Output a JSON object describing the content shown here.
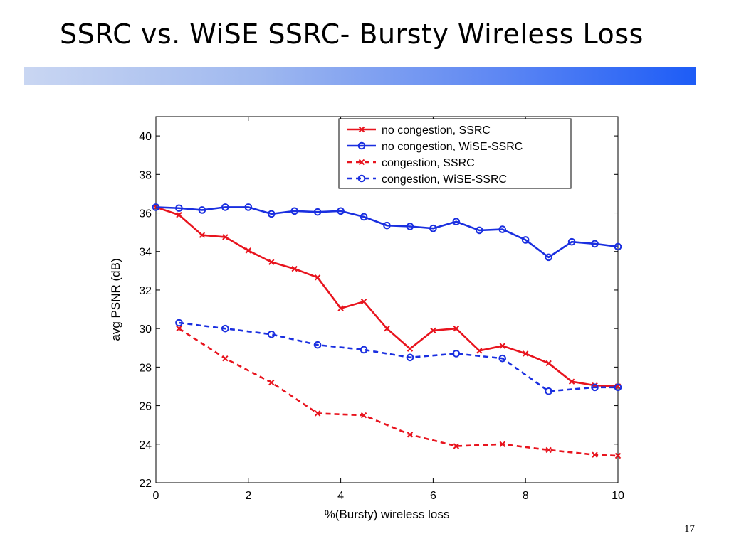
{
  "slide": {
    "title": "SSRC vs. WiSE SSRC- Bursty Wireless Loss",
    "page_number": "17",
    "accent_color": "#1d5cf6"
  },
  "chart_data": {
    "type": "line",
    "title": "",
    "xlabel": "%(Bursty) wireless loss",
    "ylabel": "avg PSNR (dB)",
    "xlim": [
      0,
      10
    ],
    "ylim": [
      22,
      41
    ],
    "xticks": [
      0,
      2,
      4,
      6,
      8,
      10
    ],
    "yticks": [
      22,
      24,
      26,
      28,
      30,
      32,
      34,
      36,
      38,
      40
    ],
    "grid": false,
    "legend_position": "top-right",
    "series": [
      {
        "name": "no congestion, SSRC",
        "color": "#e8141e",
        "line_style": "solid",
        "marker": "x",
        "x": [
          0,
          0.5,
          1,
          1.5,
          2,
          2.5,
          3,
          3.5,
          4,
          4.5,
          5,
          5.5,
          6,
          6.5,
          7,
          7.5,
          8,
          8.5,
          9,
          9.5,
          10
        ],
        "y": [
          36.3,
          35.9,
          34.85,
          34.75,
          34.05,
          33.45,
          33.1,
          32.65,
          31.05,
          31.4,
          30.0,
          28.95,
          29.9,
          30.0,
          28.85,
          29.1,
          28.7,
          28.2,
          27.25,
          27.05,
          27.0
        ]
      },
      {
        "name": "no congestion, WiSE-SSRC",
        "color": "#1a2fe0",
        "line_style": "solid",
        "marker": "o",
        "x": [
          0,
          0.5,
          1,
          1.5,
          2,
          2.5,
          3,
          3.5,
          4,
          4.5,
          5,
          5.5,
          6,
          6.5,
          7,
          7.5,
          8,
          8.5,
          9,
          9.5,
          10
        ],
        "y": [
          36.3,
          36.25,
          36.15,
          36.3,
          36.3,
          35.95,
          36.1,
          36.05,
          36.1,
          35.8,
          35.35,
          35.3,
          35.2,
          35.55,
          35.1,
          35.15,
          34.6,
          33.7,
          34.5,
          34.4,
          34.25
        ]
      },
      {
        "name": "congestion, SSRC",
        "color": "#e8141e",
        "line_style": "dashed",
        "marker": "x",
        "x": [
          0.5,
          1.5,
          2.5,
          3.5,
          4.5,
          5.5,
          6.5,
          7.5,
          8.5,
          9.5,
          10
        ],
        "y": [
          30.0,
          28.45,
          27.2,
          25.6,
          25.5,
          24.5,
          23.9,
          24.0,
          23.7,
          23.45,
          23.4
        ]
      },
      {
        "name": "congestion, WiSE-SSRC",
        "color": "#1a2fe0",
        "line_style": "dashed",
        "marker": "o",
        "x": [
          0.5,
          1.5,
          2.5,
          3.5,
          4.5,
          5.5,
          6.5,
          7.5,
          8.5,
          9.5,
          10
        ],
        "y": [
          30.3,
          30.0,
          29.7,
          29.15,
          28.9,
          28.5,
          28.7,
          28.45,
          26.75,
          26.95,
          26.95
        ]
      }
    ]
  }
}
